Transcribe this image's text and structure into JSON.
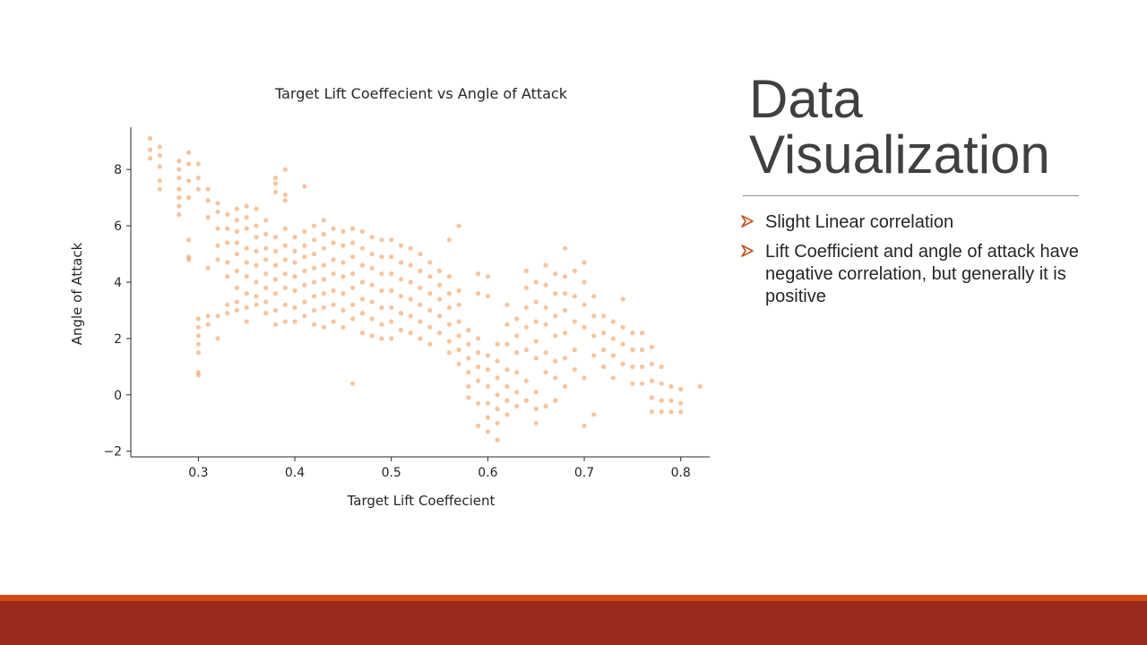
{
  "slide": {
    "title": "Data Visualization",
    "bullets": [
      "Slight Linear correlation",
      "Lift Coefficient and angle of attack have negative correlation, but generally it is positive"
    ],
    "colors": {
      "title": "#404040",
      "bullet_marker": "#c8501e",
      "footer_accent": "#d04a17",
      "footer_bar": "#9a2b1c"
    }
  },
  "chart_data": {
    "type": "scatter",
    "title": "Target Lift Coeffecient vs Angle of Attack",
    "xlabel": "Target Lift Coeffecient",
    "ylabel": "Angle of Attack",
    "xlim": [
      0.23,
      0.83
    ],
    "ylim": [
      -2.2,
      9.5
    ],
    "xticks": [
      0.3,
      0.4,
      0.5,
      0.6,
      0.7,
      0.8
    ],
    "yticks": [
      -2,
      0,
      2,
      4,
      6,
      8
    ],
    "xtick_labels": [
      "0.3",
      "0.4",
      "0.5",
      "0.6",
      "0.7",
      "0.8"
    ],
    "ytick_labels": [
      "−2",
      "0",
      "2",
      "4",
      "6",
      "8"
    ],
    "grid": false,
    "marker_color": "#f08a3c",
    "points": [
      [
        0.25,
        9.1
      ],
      [
        0.25,
        8.7
      ],
      [
        0.25,
        8.4
      ],
      [
        0.26,
        8.8
      ],
      [
        0.26,
        8.5
      ],
      [
        0.26,
        8.1
      ],
      [
        0.26,
        7.6
      ],
      [
        0.26,
        7.3
      ],
      [
        0.28,
        8.3
      ],
      [
        0.28,
        8.0
      ],
      [
        0.28,
        7.7
      ],
      [
        0.28,
        7.3
      ],
      [
        0.28,
        7.0
      ],
      [
        0.28,
        6.7
      ],
      [
        0.28,
        6.4
      ],
      [
        0.29,
        8.6
      ],
      [
        0.29,
        8.2
      ],
      [
        0.29,
        7.6
      ],
      [
        0.29,
        7.0
      ],
      [
        0.29,
        5.5
      ],
      [
        0.29,
        4.9
      ],
      [
        0.29,
        4.8
      ],
      [
        0.3,
        8.2
      ],
      [
        0.3,
        7.7
      ],
      [
        0.3,
        7.3
      ],
      [
        0.3,
        2.7
      ],
      [
        0.3,
        2.4
      ],
      [
        0.3,
        2.1
      ],
      [
        0.3,
        1.8
      ],
      [
        0.3,
        1.5
      ],
      [
        0.3,
        0.8
      ],
      [
        0.3,
        0.7
      ],
      [
        0.31,
        7.3
      ],
      [
        0.31,
        6.9
      ],
      [
        0.31,
        6.3
      ],
      [
        0.31,
        4.5
      ],
      [
        0.31,
        2.8
      ],
      [
        0.31,
        2.5
      ],
      [
        0.32,
        6.8
      ],
      [
        0.32,
        6.5
      ],
      [
        0.32,
        5.9
      ],
      [
        0.32,
        5.3
      ],
      [
        0.32,
        4.8
      ],
      [
        0.32,
        2.8
      ],
      [
        0.32,
        2.0
      ],
      [
        0.33,
        6.4
      ],
      [
        0.33,
        5.9
      ],
      [
        0.33,
        5.4
      ],
      [
        0.33,
        4.7
      ],
      [
        0.33,
        4.2
      ],
      [
        0.33,
        3.2
      ],
      [
        0.33,
        2.9
      ],
      [
        0.34,
        6.6
      ],
      [
        0.34,
        6.2
      ],
      [
        0.34,
        5.8
      ],
      [
        0.34,
        5.4
      ],
      [
        0.34,
        5.0
      ],
      [
        0.34,
        4.4
      ],
      [
        0.34,
        3.8
      ],
      [
        0.34,
        3.3
      ],
      [
        0.34,
        3.0
      ],
      [
        0.35,
        6.7
      ],
      [
        0.35,
        6.3
      ],
      [
        0.35,
        5.9
      ],
      [
        0.35,
        5.2
      ],
      [
        0.35,
        4.7
      ],
      [
        0.35,
        4.2
      ],
      [
        0.35,
        3.6
      ],
      [
        0.35,
        3.1
      ],
      [
        0.35,
        2.6
      ],
      [
        0.36,
        6.6
      ],
      [
        0.36,
        6.0
      ],
      [
        0.36,
        5.6
      ],
      [
        0.36,
        5.1
      ],
      [
        0.36,
        4.6
      ],
      [
        0.36,
        4.0
      ],
      [
        0.36,
        3.5
      ],
      [
        0.36,
        3.2
      ],
      [
        0.37,
        6.2
      ],
      [
        0.37,
        5.7
      ],
      [
        0.37,
        5.2
      ],
      [
        0.37,
        4.8
      ],
      [
        0.37,
        4.3
      ],
      [
        0.37,
        3.8
      ],
      [
        0.37,
        3.3
      ],
      [
        0.37,
        2.9
      ],
      [
        0.38,
        7.7
      ],
      [
        0.38,
        7.5
      ],
      [
        0.38,
        7.2
      ],
      [
        0.38,
        5.6
      ],
      [
        0.38,
        5.1
      ],
      [
        0.38,
        4.6
      ],
      [
        0.38,
        4.1
      ],
      [
        0.38,
        3.6
      ],
      [
        0.38,
        3.0
      ],
      [
        0.38,
        2.5
      ],
      [
        0.39,
        8.0
      ],
      [
        0.39,
        7.1
      ],
      [
        0.39,
        6.9
      ],
      [
        0.39,
        5.9
      ],
      [
        0.39,
        5.3
      ],
      [
        0.39,
        4.8
      ],
      [
        0.39,
        4.3
      ],
      [
        0.39,
        3.8
      ],
      [
        0.39,
        3.2
      ],
      [
        0.39,
        2.6
      ],
      [
        0.4,
        5.6
      ],
      [
        0.4,
        5.1
      ],
      [
        0.4,
        4.7
      ],
      [
        0.4,
        4.2
      ],
      [
        0.4,
        3.7
      ],
      [
        0.4,
        3.1
      ],
      [
        0.4,
        2.6
      ],
      [
        0.41,
        7.4
      ],
      [
        0.41,
        5.8
      ],
      [
        0.41,
        5.3
      ],
      [
        0.41,
        4.9
      ],
      [
        0.41,
        4.4
      ],
      [
        0.41,
        3.9
      ],
      [
        0.41,
        3.3
      ],
      [
        0.41,
        2.8
      ],
      [
        0.42,
        6.0
      ],
      [
        0.42,
        5.5
      ],
      [
        0.42,
        5.0
      ],
      [
        0.42,
        4.5
      ],
      [
        0.42,
        4.0
      ],
      [
        0.42,
        3.5
      ],
      [
        0.42,
        3.0
      ],
      [
        0.42,
        2.5
      ],
      [
        0.43,
        6.2
      ],
      [
        0.43,
        5.7
      ],
      [
        0.43,
        5.2
      ],
      [
        0.43,
        4.6
      ],
      [
        0.43,
        4.1
      ],
      [
        0.43,
        3.6
      ],
      [
        0.43,
        3.1
      ],
      [
        0.43,
        2.4
      ],
      [
        0.44,
        5.9
      ],
      [
        0.44,
        5.4
      ],
      [
        0.44,
        4.8
      ],
      [
        0.44,
        4.3
      ],
      [
        0.44,
        3.7
      ],
      [
        0.44,
        3.2
      ],
      [
        0.44,
        2.6
      ],
      [
        0.45,
        5.8
      ],
      [
        0.45,
        5.3
      ],
      [
        0.45,
        4.7
      ],
      [
        0.45,
        4.2
      ],
      [
        0.45,
        3.6
      ],
      [
        0.45,
        3.0
      ],
      [
        0.45,
        2.4
      ],
      [
        0.46,
        5.9
      ],
      [
        0.46,
        5.4
      ],
      [
        0.46,
        4.9
      ],
      [
        0.46,
        4.3
      ],
      [
        0.46,
        3.8
      ],
      [
        0.46,
        3.2
      ],
      [
        0.46,
        2.7
      ],
      [
        0.46,
        0.4
      ],
      [
        0.47,
        5.8
      ],
      [
        0.47,
        5.2
      ],
      [
        0.47,
        4.6
      ],
      [
        0.47,
        4.0
      ],
      [
        0.47,
        3.4
      ],
      [
        0.47,
        2.9
      ],
      [
        0.47,
        2.2
      ],
      [
        0.48,
        5.6
      ],
      [
        0.48,
        5.0
      ],
      [
        0.48,
        4.5
      ],
      [
        0.48,
        3.9
      ],
      [
        0.48,
        3.3
      ],
      [
        0.48,
        2.7
      ],
      [
        0.48,
        2.1
      ],
      [
        0.49,
        5.5
      ],
      [
        0.49,
        4.9
      ],
      [
        0.49,
        4.3
      ],
      [
        0.49,
        3.7
      ],
      [
        0.49,
        3.1
      ],
      [
        0.49,
        2.5
      ],
      [
        0.49,
        2.0
      ],
      [
        0.5,
        5.5
      ],
      [
        0.5,
        4.9
      ],
      [
        0.5,
        4.3
      ],
      [
        0.5,
        3.7
      ],
      [
        0.5,
        3.1
      ],
      [
        0.5,
        2.6
      ],
      [
        0.5,
        2.0
      ],
      [
        0.51,
        5.3
      ],
      [
        0.51,
        4.7
      ],
      [
        0.51,
        4.1
      ],
      [
        0.51,
        3.5
      ],
      [
        0.51,
        2.9
      ],
      [
        0.51,
        2.3
      ],
      [
        0.52,
        5.2
      ],
      [
        0.52,
        4.6
      ],
      [
        0.52,
        4.0
      ],
      [
        0.52,
        3.4
      ],
      [
        0.52,
        2.8
      ],
      [
        0.52,
        2.2
      ],
      [
        0.53,
        5.0
      ],
      [
        0.53,
        4.4
      ],
      [
        0.53,
        3.8
      ],
      [
        0.53,
        3.2
      ],
      [
        0.53,
        2.6
      ],
      [
        0.53,
        2.0
      ],
      [
        0.54,
        4.7
      ],
      [
        0.54,
        4.2
      ],
      [
        0.54,
        3.6
      ],
      [
        0.54,
        3.0
      ],
      [
        0.54,
        2.4
      ],
      [
        0.54,
        1.8
      ],
      [
        0.55,
        4.4
      ],
      [
        0.55,
        3.9
      ],
      [
        0.55,
        3.4
      ],
      [
        0.55,
        2.8
      ],
      [
        0.55,
        2.2
      ],
      [
        0.56,
        5.5
      ],
      [
        0.56,
        4.2
      ],
      [
        0.56,
        3.6
      ],
      [
        0.56,
        3.1
      ],
      [
        0.56,
        2.5
      ],
      [
        0.56,
        1.9
      ],
      [
        0.56,
        1.5
      ],
      [
        0.57,
        6.0
      ],
      [
        0.57,
        3.7
      ],
      [
        0.57,
        3.2
      ],
      [
        0.57,
        2.6
      ],
      [
        0.57,
        2.1
      ],
      [
        0.57,
        1.6
      ],
      [
        0.57,
        1.1
      ],
      [
        0.58,
        2.3
      ],
      [
        0.58,
        1.8
      ],
      [
        0.58,
        1.3
      ],
      [
        0.58,
        0.8
      ],
      [
        0.58,
        0.3
      ],
      [
        0.58,
        -0.1
      ],
      [
        0.59,
        4.3
      ],
      [
        0.59,
        3.6
      ],
      [
        0.59,
        2.0
      ],
      [
        0.59,
        1.5
      ],
      [
        0.59,
        1.0
      ],
      [
        0.59,
        0.5
      ],
      [
        0.59,
        -0.3
      ],
      [
        0.59,
        -1.1
      ],
      [
        0.6,
        4.2
      ],
      [
        0.6,
        3.5
      ],
      [
        0.6,
        1.4
      ],
      [
        0.6,
        0.9
      ],
      [
        0.6,
        0.3
      ],
      [
        0.6,
        -0.3
      ],
      [
        0.6,
        -0.8
      ],
      [
        0.6,
        -1.3
      ],
      [
        0.61,
        1.8
      ],
      [
        0.61,
        1.2
      ],
      [
        0.61,
        0.6
      ],
      [
        0.61,
        0.0
      ],
      [
        0.61,
        -0.5
      ],
      [
        0.61,
        -1.0
      ],
      [
        0.61,
        -1.6
      ],
      [
        0.62,
        3.2
      ],
      [
        0.62,
        2.5
      ],
      [
        0.62,
        1.8
      ],
      [
        0.62,
        0.9
      ],
      [
        0.62,
        0.3
      ],
      [
        0.62,
        -0.2
      ],
      [
        0.62,
        -0.7
      ],
      [
        0.63,
        2.7
      ],
      [
        0.63,
        2.1
      ],
      [
        0.63,
        1.5
      ],
      [
        0.63,
        0.8
      ],
      [
        0.63,
        0.1
      ],
      [
        0.63,
        -0.4
      ],
      [
        0.64,
        4.4
      ],
      [
        0.64,
        3.8
      ],
      [
        0.64,
        3.1
      ],
      [
        0.64,
        2.4
      ],
      [
        0.64,
        1.6
      ],
      [
        0.64,
        0.5
      ],
      [
        0.64,
        -0.2
      ],
      [
        0.65,
        4.0
      ],
      [
        0.65,
        3.3
      ],
      [
        0.65,
        2.6
      ],
      [
        0.65,
        1.9
      ],
      [
        0.65,
        1.3
      ],
      [
        0.65,
        0.1
      ],
      [
        0.65,
        -0.5
      ],
      [
        0.65,
        -1.0
      ],
      [
        0.66,
        4.6
      ],
      [
        0.66,
        3.9
      ],
      [
        0.66,
        3.1
      ],
      [
        0.66,
        2.5
      ],
      [
        0.66,
        1.5
      ],
      [
        0.66,
        0.8
      ],
      [
        0.66,
        -0.4
      ],
      [
        0.67,
        4.3
      ],
      [
        0.67,
        3.6
      ],
      [
        0.67,
        2.8
      ],
      [
        0.67,
        2.1
      ],
      [
        0.67,
        1.2
      ],
      [
        0.67,
        0.6
      ],
      [
        0.67,
        -0.2
      ],
      [
        0.68,
        5.2
      ],
      [
        0.68,
        4.2
      ],
      [
        0.68,
        3.6
      ],
      [
        0.68,
        3.0
      ],
      [
        0.68,
        2.2
      ],
      [
        0.68,
        1.3
      ],
      [
        0.68,
        0.3
      ],
      [
        0.69,
        4.4
      ],
      [
        0.69,
        3.5
      ],
      [
        0.69,
        2.6
      ],
      [
        0.69,
        1.6
      ],
      [
        0.69,
        0.9
      ],
      [
        0.7,
        4.7
      ],
      [
        0.7,
        4.0
      ],
      [
        0.7,
        3.2
      ],
      [
        0.7,
        2.4
      ],
      [
        0.7,
        0.6
      ],
      [
        0.7,
        -1.1
      ],
      [
        0.71,
        3.5
      ],
      [
        0.71,
        2.8
      ],
      [
        0.71,
        2.1
      ],
      [
        0.71,
        1.4
      ],
      [
        0.71,
        -0.7
      ],
      [
        0.72,
        2.8
      ],
      [
        0.72,
        2.2
      ],
      [
        0.72,
        1.6
      ],
      [
        0.72,
        1.0
      ],
      [
        0.73,
        2.6
      ],
      [
        0.73,
        2.0
      ],
      [
        0.73,
        1.4
      ],
      [
        0.73,
        0.6
      ],
      [
        0.74,
        3.4
      ],
      [
        0.74,
        2.4
      ],
      [
        0.74,
        1.8
      ],
      [
        0.74,
        1.1
      ],
      [
        0.75,
        2.2
      ],
      [
        0.75,
        1.6
      ],
      [
        0.75,
        1.0
      ],
      [
        0.75,
        0.4
      ],
      [
        0.76,
        2.2
      ],
      [
        0.76,
        1.6
      ],
      [
        0.76,
        1.0
      ],
      [
        0.76,
        0.4
      ],
      [
        0.77,
        1.7
      ],
      [
        0.77,
        1.1
      ],
      [
        0.77,
        0.5
      ],
      [
        0.77,
        -0.1
      ],
      [
        0.77,
        -0.6
      ],
      [
        0.78,
        1.0
      ],
      [
        0.78,
        0.4
      ],
      [
        0.78,
        -0.2
      ],
      [
        0.78,
        -0.6
      ],
      [
        0.79,
        0.3
      ],
      [
        0.79,
        -0.2
      ],
      [
        0.79,
        -0.6
      ],
      [
        0.8,
        0.2
      ],
      [
        0.8,
        -0.3
      ],
      [
        0.8,
        -0.6
      ],
      [
        0.82,
        0.3
      ]
    ]
  }
}
